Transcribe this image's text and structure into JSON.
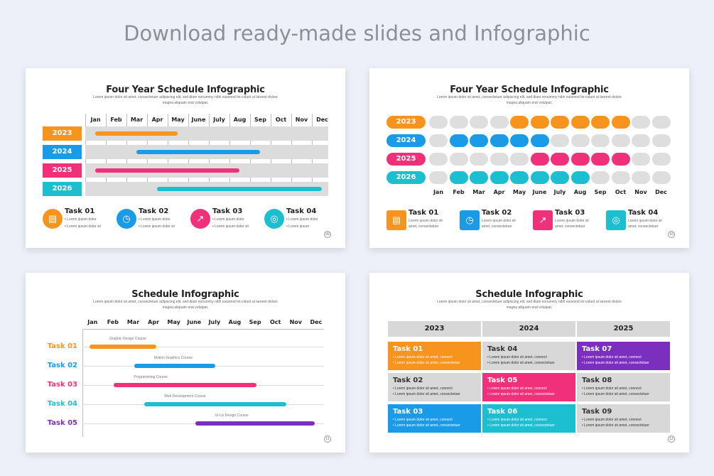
{
  "headline": "Download ready-made slides and Infographic",
  "subtitle": "Lorem ipsum dolor sit amet, consectetuer adipiscing elit, sed diam nonummy nibh euismod tin-cidunt ut laoreet dolore magna aliquam erat volutpat.",
  "months": [
    "Jan",
    "Feb",
    "Mar",
    "Apr",
    "May",
    "June",
    "July",
    "Aug",
    "Sep",
    "Oct",
    "Nov",
    "Dec"
  ],
  "colors": {
    "orange": "#f7941d",
    "blue": "#1a9be8",
    "pink": "#f0317a",
    "teal": "#1cbfd0",
    "purple": "#7b2fbe",
    "gray": "#d8d8d8"
  },
  "slide1": {
    "title": "Four Year Schedule Infographic",
    "page": "09",
    "years": [
      "2023",
      "2024",
      "2025",
      "2026"
    ],
    "bars": [
      {
        "year": "2023",
        "start_month": 1,
        "end_month": 5
      },
      {
        "year": "2024",
        "start_month": 3,
        "end_month": 9
      },
      {
        "year": "2025",
        "start_month": 1,
        "end_month": 8
      },
      {
        "year": "2026",
        "start_month": 4,
        "end_month": 12
      }
    ],
    "tasks": [
      {
        "name": "Task 01",
        "icon": "briefcase-icon",
        "b1": "Lorem ipsum dolor",
        "b2": "Lorem ipsum dolor sit"
      },
      {
        "name": "Task 02",
        "icon": "stopwatch-icon",
        "b1": "Lorem ipsum dolor",
        "b2": "Lorem ipsum dolor sit"
      },
      {
        "name": "Task 03",
        "icon": "chart-icon",
        "b1": "Lorem ipsum dolor",
        "b2": "Lorem ipsum dolor sit"
      },
      {
        "name": "Task 04",
        "icon": "coins-icon",
        "b1": "Lorem ipsum dolor",
        "b2": "Lorem ipsum"
      }
    ]
  },
  "slide2": {
    "title": "Four Year Schedule Infographic",
    "page": "10",
    "years": [
      "2023",
      "2024",
      "2025",
      "2026"
    ],
    "active_months": [
      [
        5,
        6,
        7,
        8,
        9,
        10
      ],
      [
        2,
        3,
        4,
        5,
        6
      ],
      [
        6,
        7,
        8,
        9,
        10
      ],
      [
        2,
        3,
        4,
        5,
        6,
        7,
        8
      ]
    ],
    "tasks": [
      {
        "name": "Task 01",
        "icon": "briefcase-icon",
        "b1": "Lorem ipsum dolor sit",
        "b2": "amet, consectetuer"
      },
      {
        "name": "Task 02",
        "icon": "stopwatch-icon",
        "b1": "Lorem ipsum dolor sit",
        "b2": "amet, consectetuer"
      },
      {
        "name": "Task 03",
        "icon": "chart-icon",
        "b1": "Lorem ipsum dolor sit",
        "b2": "amet, consectetuer"
      },
      {
        "name": "Task 04",
        "icon": "coins-icon",
        "b1": "Lorem ipsum dolor sit",
        "b2": "amet, consectetuer"
      }
    ]
  },
  "slide3": {
    "title": "Schedule Infographic",
    "page": "11",
    "rows": [
      {
        "label": "Task 01",
        "course": "Graphic Design Course",
        "start_month": 1,
        "end_month": 4.3
      },
      {
        "label": "Task 02",
        "course": "Motion Graphics Course",
        "start_month": 3.2,
        "end_month": 7.2
      },
      {
        "label": "Task 03",
        "course": "Programming Course",
        "start_month": 2.2,
        "end_month": 9.2
      },
      {
        "label": "Task 04",
        "course": "Web Development Course",
        "start_month": 3.7,
        "end_month": 10.7
      },
      {
        "label": "Task 05",
        "course": "Ui-Ux Design Course",
        "start_month": 6.2,
        "end_month": 12.1
      }
    ]
  },
  "slide4": {
    "title": "Schedule Infographic",
    "page": "12",
    "years": [
      "2023",
      "2024",
      "2025"
    ],
    "cells": [
      {
        "name": "Task 01",
        "l1": "Lorem ipsum dolor sit amet, connect",
        "l2": "Lorem ipsum dolor sit amet, consectetuer"
      },
      {
        "name": "Task 04",
        "l1": "Lorem ipsum dolor sit amet, connect",
        "l2": "Lorem ipsum dolor sit amet, consectetuer"
      },
      {
        "name": "Task 07",
        "l1": "Lorem ipsum dolor sit amet, connect",
        "l2": "Lorem ipsum dolor sit amet, consectetuer"
      },
      {
        "name": "Task 02",
        "l1": "Lorem ipsum dolor sit amet, connect",
        "l2": "Lorem ipsum dolor sit amet, consectetuer"
      },
      {
        "name": "Task 05",
        "l1": "Lorem ipsum dolor sit amet, connect",
        "l2": "Lorem ipsum dolor sit amet, consectetuer"
      },
      {
        "name": "Task 08",
        "l1": "Lorem ipsum dolor sit amet, connect",
        "l2": "Lorem ipsum dolor sit amet, consectetuer"
      },
      {
        "name": "Task 03",
        "l1": "Lorem ipsum dolor sit amet, connect",
        "l2": "Lorem ipsum dolor sit amet, consectetuer"
      },
      {
        "name": "Task 06",
        "l1": "Lorem ipsum dolor sit amet, connect",
        "l2": "Lorem ipsum dolor sit amet, consectetuer"
      },
      {
        "name": "Task 09",
        "l1": "Lorem ipsum dolor sit amet, connect",
        "l2": "Lorem ipsum dolor sit amet, consectetuer"
      }
    ]
  }
}
